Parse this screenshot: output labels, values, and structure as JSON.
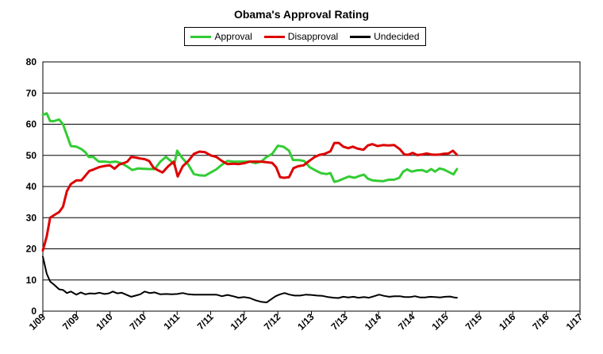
{
  "chart_data": {
    "type": "line",
    "title": "Obama's Approval Rating",
    "xlabel": "",
    "ylabel": "",
    "ylim": [
      0,
      80
    ],
    "yticks": [
      0,
      10,
      20,
      30,
      40,
      50,
      60,
      70,
      80
    ],
    "x_tick_labels": [
      "1/09",
      "7/09",
      "1/10",
      "7/10",
      "1/11",
      "7/11",
      "1/12",
      "7/12",
      "1/13",
      "7/13",
      "1/14",
      "7/14",
      "1/15",
      "7/15",
      "1/16",
      "7/16",
      "1/17"
    ],
    "grid": "horizontal",
    "legend_position": "top",
    "series": [
      {
        "name": "Approval",
        "color": "#33cc33",
        "points": [
          [
            0,
            63
          ],
          [
            0.7,
            63.5
          ],
          [
            1.3,
            61
          ],
          [
            2,
            61
          ],
          [
            2.9,
            61.5
          ],
          [
            3.6,
            60
          ],
          [
            4.3,
            56.5
          ],
          [
            5,
            53
          ],
          [
            6,
            52.8
          ],
          [
            6.9,
            52
          ],
          [
            7.6,
            51
          ],
          [
            8.2,
            49.5
          ],
          [
            9,
            49.5
          ],
          [
            10,
            48
          ],
          [
            11,
            48
          ],
          [
            12,
            47.8
          ],
          [
            13,
            48
          ],
          [
            14,
            47.5
          ],
          [
            15,
            46.5
          ],
          [
            16,
            45.3
          ],
          [
            17,
            45.8
          ],
          [
            18,
            45.7
          ],
          [
            19,
            45.6
          ],
          [
            20,
            45.6
          ],
          [
            21,
            48
          ],
          [
            22,
            49.5
          ],
          [
            23,
            48
          ],
          [
            23.5,
            47
          ],
          [
            24,
            51.5
          ],
          [
            25,
            49
          ],
          [
            26,
            47
          ],
          [
            27,
            44
          ],
          [
            28,
            43.6
          ],
          [
            29,
            43.5
          ],
          [
            30,
            44.5
          ],
          [
            31,
            45.5
          ],
          [
            32,
            47
          ],
          [
            33,
            48.2
          ],
          [
            34,
            48
          ],
          [
            35,
            48
          ],
          [
            36,
            48
          ],
          [
            37,
            48
          ],
          [
            38,
            47.5
          ],
          [
            39,
            48
          ],
          [
            40,
            49.5
          ],
          [
            41,
            50.5
          ],
          [
            42,
            53.1
          ],
          [
            43,
            52.8
          ],
          [
            44,
            51.5
          ],
          [
            44.7,
            48.5
          ],
          [
            45.7,
            48.5
          ],
          [
            46.7,
            48.2
          ],
          [
            47.7,
            46.2
          ],
          [
            48.7,
            45.2
          ],
          [
            49.7,
            44.3
          ],
          [
            50.7,
            44
          ],
          [
            51.4,
            44.3
          ],
          [
            52.1,
            41.5
          ],
          [
            52.8,
            41.8
          ],
          [
            53.7,
            42.5
          ],
          [
            54.7,
            43.2
          ],
          [
            55.7,
            42.8
          ],
          [
            56.7,
            43.5
          ],
          [
            57.4,
            43.8
          ],
          [
            58.1,
            42.5
          ],
          [
            58.9,
            42
          ],
          [
            59.9,
            41.8
          ],
          [
            60.8,
            41.7
          ],
          [
            61.8,
            42.2
          ],
          [
            62.8,
            42.2
          ],
          [
            63.7,
            42.8
          ],
          [
            64.4,
            44.8
          ],
          [
            65.1,
            45.5
          ],
          [
            65.9,
            44.8
          ],
          [
            66.9,
            45.2
          ],
          [
            67.8,
            45.3
          ],
          [
            68.6,
            44.7
          ],
          [
            69.4,
            45.6
          ],
          [
            70.1,
            44.8
          ],
          [
            70.9,
            45.8
          ],
          [
            71.6,
            45.5
          ],
          [
            72.4,
            44.8
          ],
          [
            73.4,
            43.9
          ],
          [
            74,
            45.6
          ]
        ]
      },
      {
        "name": "Disapproval",
        "color": "#dd0000",
        "points": [
          [
            0,
            19.5
          ],
          [
            0.7,
            24
          ],
          [
            1.3,
            30
          ],
          [
            2,
            30.8
          ],
          [
            2.9,
            31.8
          ],
          [
            3.6,
            33.5
          ],
          [
            4.3,
            38.5
          ],
          [
            5,
            40.8
          ],
          [
            6,
            42
          ],
          [
            6.9,
            42
          ],
          [
            7.6,
            43.5
          ],
          [
            8.3,
            45
          ],
          [
            9.1,
            45.5
          ],
          [
            10,
            46.2
          ],
          [
            11,
            46.6
          ],
          [
            12,
            46.8
          ],
          [
            12.8,
            45.7
          ],
          [
            13.6,
            47
          ],
          [
            14.4,
            47.5
          ],
          [
            15.1,
            48
          ],
          [
            15.8,
            49.5
          ],
          [
            16.6,
            49.3
          ],
          [
            17.4,
            49
          ],
          [
            18.2,
            48.8
          ],
          [
            19,
            48.2
          ],
          [
            19.8,
            46
          ],
          [
            20.6,
            45.2
          ],
          [
            21.4,
            44.5
          ],
          [
            22.4,
            46.5
          ],
          [
            23.4,
            48
          ],
          [
            24.1,
            43.2
          ],
          [
            25,
            46.5
          ],
          [
            26,
            48.2
          ],
          [
            27,
            50.5
          ],
          [
            28,
            51.2
          ],
          [
            29,
            51
          ],
          [
            30,
            50
          ],
          [
            31,
            49.5
          ],
          [
            32,
            48.2
          ],
          [
            33,
            47.2
          ],
          [
            34,
            47.3
          ],
          [
            35,
            47.2
          ],
          [
            36,
            47.5
          ],
          [
            37,
            48
          ],
          [
            38,
            48
          ],
          [
            39,
            48
          ],
          [
            40,
            47.8
          ],
          [
            41,
            47.6
          ],
          [
            41.7,
            46.2
          ],
          [
            42.4,
            43
          ],
          [
            43.1,
            42.8
          ],
          [
            44,
            43
          ],
          [
            44.8,
            45.9
          ],
          [
            45.6,
            46.5
          ],
          [
            46.6,
            46.8
          ],
          [
            47.6,
            48.2
          ],
          [
            48.6,
            49.5
          ],
          [
            49.5,
            50.2
          ],
          [
            50.4,
            50.5
          ],
          [
            51.4,
            51.3
          ],
          [
            52.1,
            54
          ],
          [
            52.9,
            54
          ],
          [
            53.7,
            52.8
          ],
          [
            54.6,
            52.3
          ],
          [
            55.4,
            52.8
          ],
          [
            56.2,
            52.2
          ],
          [
            57.3,
            51.8
          ],
          [
            58.1,
            53.2
          ],
          [
            58.9,
            53.6
          ],
          [
            59.8,
            53
          ],
          [
            60.8,
            53.3
          ],
          [
            61.8,
            53.2
          ],
          [
            62.8,
            53.3
          ],
          [
            63.8,
            52
          ],
          [
            64.6,
            50.3
          ],
          [
            65.3,
            50.2
          ],
          [
            66.1,
            50.8
          ],
          [
            66.9,
            50.1
          ],
          [
            67.8,
            50.3
          ],
          [
            68.6,
            50.6
          ],
          [
            69.4,
            50.3
          ],
          [
            70.1,
            50.2
          ],
          [
            70.9,
            50.3
          ],
          [
            71.6,
            50.5
          ],
          [
            72.5,
            50.6
          ],
          [
            73.3,
            51.5
          ],
          [
            74,
            50.2
          ]
        ]
      },
      {
        "name": "Undecided",
        "color": "#000000",
        "points": [
          [
            0,
            17.5
          ],
          [
            0.7,
            12
          ],
          [
            1.3,
            9.5
          ],
          [
            2,
            8.5
          ],
          [
            2.9,
            7
          ],
          [
            3.6,
            6.8
          ],
          [
            4.3,
            5.8
          ],
          [
            5,
            6.3
          ],
          [
            6,
            5.3
          ],
          [
            6.8,
            6
          ],
          [
            7.6,
            5.4
          ],
          [
            8.4,
            5.7
          ],
          [
            9.3,
            5.6
          ],
          [
            10.1,
            5.9
          ],
          [
            11,
            5.5
          ],
          [
            11.8,
            5.7
          ],
          [
            12.5,
            6.3
          ],
          [
            13.3,
            5.7
          ],
          [
            14.1,
            5.9
          ],
          [
            15,
            5.2
          ],
          [
            15.8,
            4.6
          ],
          [
            16.6,
            5
          ],
          [
            17.4,
            5.4
          ],
          [
            18.2,
            6.3
          ],
          [
            19.1,
            5.8
          ],
          [
            20,
            6
          ],
          [
            21,
            5.4
          ],
          [
            22,
            5.5
          ],
          [
            23,
            5.4
          ],
          [
            24,
            5.5
          ],
          [
            25,
            5.8
          ],
          [
            26,
            5.4
          ],
          [
            27,
            5.3
          ],
          [
            28,
            5.3
          ],
          [
            29,
            5.3
          ],
          [
            30,
            5.3
          ],
          [
            31,
            5.3
          ],
          [
            32,
            4.8
          ],
          [
            33,
            5.2
          ],
          [
            34,
            4.8
          ],
          [
            35,
            4.3
          ],
          [
            36,
            4.5
          ],
          [
            37,
            4.2
          ],
          [
            38,
            3.5
          ],
          [
            39,
            3
          ],
          [
            40,
            2.8
          ],
          [
            40.8,
            3.8
          ],
          [
            41.6,
            4.8
          ],
          [
            42.4,
            5.4
          ],
          [
            43.2,
            5.8
          ],
          [
            44.1,
            5.3
          ],
          [
            45,
            5
          ],
          [
            46,
            5
          ],
          [
            47,
            5.3
          ],
          [
            48,
            5.2
          ],
          [
            49,
            5
          ],
          [
            50,
            4.9
          ],
          [
            51,
            4.5
          ],
          [
            52,
            4.3
          ],
          [
            52.8,
            4.2
          ],
          [
            53.7,
            4.6
          ],
          [
            54.6,
            4.4
          ],
          [
            55.5,
            4.6
          ],
          [
            56.4,
            4.3
          ],
          [
            57.4,
            4.5
          ],
          [
            58.3,
            4.3
          ],
          [
            59.2,
            4.8
          ],
          [
            60.1,
            5.3
          ],
          [
            61,
            4.9
          ],
          [
            61.9,
            4.6
          ],
          [
            62.8,
            4.8
          ],
          [
            63.8,
            4.8
          ],
          [
            64.7,
            4.5
          ],
          [
            65.6,
            4.5
          ],
          [
            66.5,
            4.8
          ],
          [
            67.4,
            4.4
          ],
          [
            68.3,
            4.4
          ],
          [
            69.2,
            4.6
          ],
          [
            70.1,
            4.5
          ],
          [
            71,
            4.4
          ],
          [
            71.9,
            4.6
          ],
          [
            72.8,
            4.7
          ],
          [
            73.5,
            4.4
          ],
          [
            74,
            4.3
          ]
        ]
      }
    ]
  }
}
